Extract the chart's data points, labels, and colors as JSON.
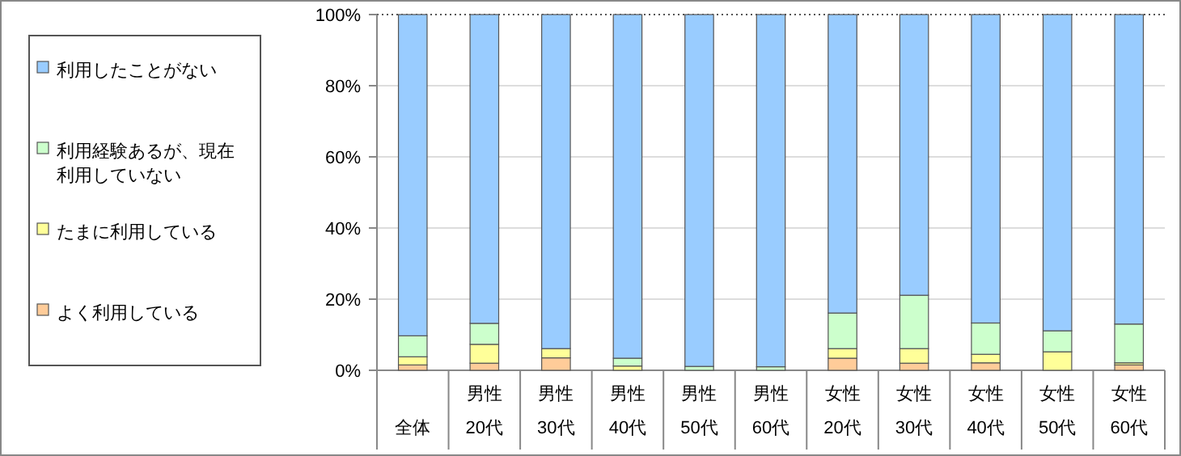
{
  "chart_data": {
    "type": "bar",
    "stacked": true,
    "categories": [
      "全体",
      "男性\n20代",
      "男性\n30代",
      "男性\n40代",
      "男性\n50代",
      "男性\n60代",
      "女性\n20代",
      "女性\n30代",
      "女性\n40代",
      "女性\n50代",
      "女性\n60代"
    ],
    "series": [
      {
        "name": "よく利用している",
        "color": "#ffcc99",
        "values": [
          1.5,
          2.0,
          3.5,
          0,
          0,
          0,
          3.4,
          2.0,
          2.1,
          0,
          1.5
        ]
      },
      {
        "name": "たまに利用している",
        "color": "#ffff99",
        "values": [
          2.3,
          5.3,
          2.6,
          1.2,
          0,
          0,
          2.7,
          4.1,
          2.4,
          5.2,
          0.6
        ]
      },
      {
        "name": "利用経験あるが、現在利用していない",
        "color": "#ccffcc",
        "values": [
          5.9,
          5.9,
          0,
          2.2,
          1.1,
          1.0,
          10.0,
          15.0,
          8.8,
          5.9,
          10.9
        ]
      },
      {
        "name": "利用したことがない",
        "color": "#99ccff",
        "values": [
          90.3,
          86.8,
          93.9,
          96.6,
          98.9,
          99.0,
          83.9,
          78.9,
          86.7,
          88.9,
          87.0
        ]
      }
    ],
    "ylim": [
      0,
      100
    ],
    "yticks": [
      {
        "value": 0,
        "label": "0%"
      },
      {
        "value": 20,
        "label": "20%"
      },
      {
        "value": 40,
        "label": "40%"
      },
      {
        "value": 60,
        "label": "60%"
      },
      {
        "value": 80,
        "label": "80%"
      },
      {
        "value": 100,
        "label": "100%"
      }
    ],
    "grid": "y",
    "legend": "left"
  }
}
